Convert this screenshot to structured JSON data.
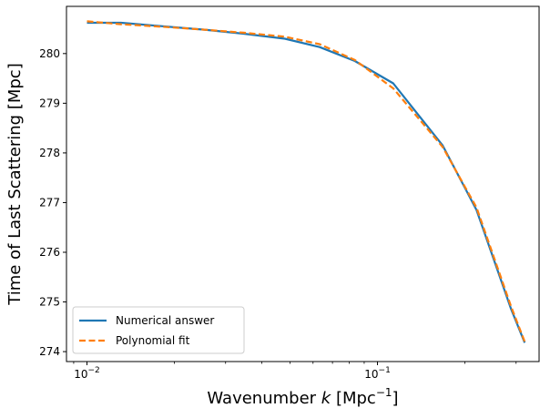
{
  "chart_data": {
    "type": "line",
    "xlabel_prefix": "Wavenumber ",
    "xlabel_var": "k",
    "xlabel_unit_open": " [Mpc",
    "xlabel_unit_exp": "−1",
    "xlabel_unit_close": "]",
    "ylabel": "Time of Last Scattering [Mpc]",
    "xscale": "log",
    "xlim": [
      0.0085,
      0.36
    ],
    "ylim": [
      273.8,
      280.95
    ],
    "xticks": [
      {
        "value": 0.01,
        "base": "10",
        "exp": "−2"
      },
      {
        "value": 0.1,
        "base": "10",
        "exp": "−1"
      }
    ],
    "yticks": [
      274,
      275,
      276,
      277,
      278,
      279,
      280
    ],
    "grid": false,
    "legend_position": "lower-left",
    "series": [
      {
        "name": "Numerical answer",
        "color": "#1f77b4",
        "style": "solid",
        "x": [
          0.01,
          0.0131,
          0.0182,
          0.0254,
          0.0346,
          0.048,
          0.0632,
          0.0836,
          0.1133,
          0.1676,
          0.2192,
          0.2886,
          0.3213
        ],
        "y": [
          280.62,
          280.62,
          280.55,
          280.48,
          280.4,
          280.3,
          280.13,
          279.85,
          279.4,
          278.15,
          276.85,
          274.85,
          274.18
        ]
      },
      {
        "name": "Polynomial fit",
        "color": "#ff7f0e",
        "style": "dashed",
        "x": [
          0.01,
          0.0131,
          0.0182,
          0.0254,
          0.0346,
          0.048,
          0.0632,
          0.0836,
          0.1133,
          0.1676,
          0.2192,
          0.2886,
          0.3213
        ],
        "y": [
          280.65,
          280.59,
          280.54,
          280.48,
          280.42,
          280.34,
          280.19,
          279.87,
          279.3,
          278.12,
          276.9,
          274.9,
          274.2
        ]
      }
    ]
  }
}
